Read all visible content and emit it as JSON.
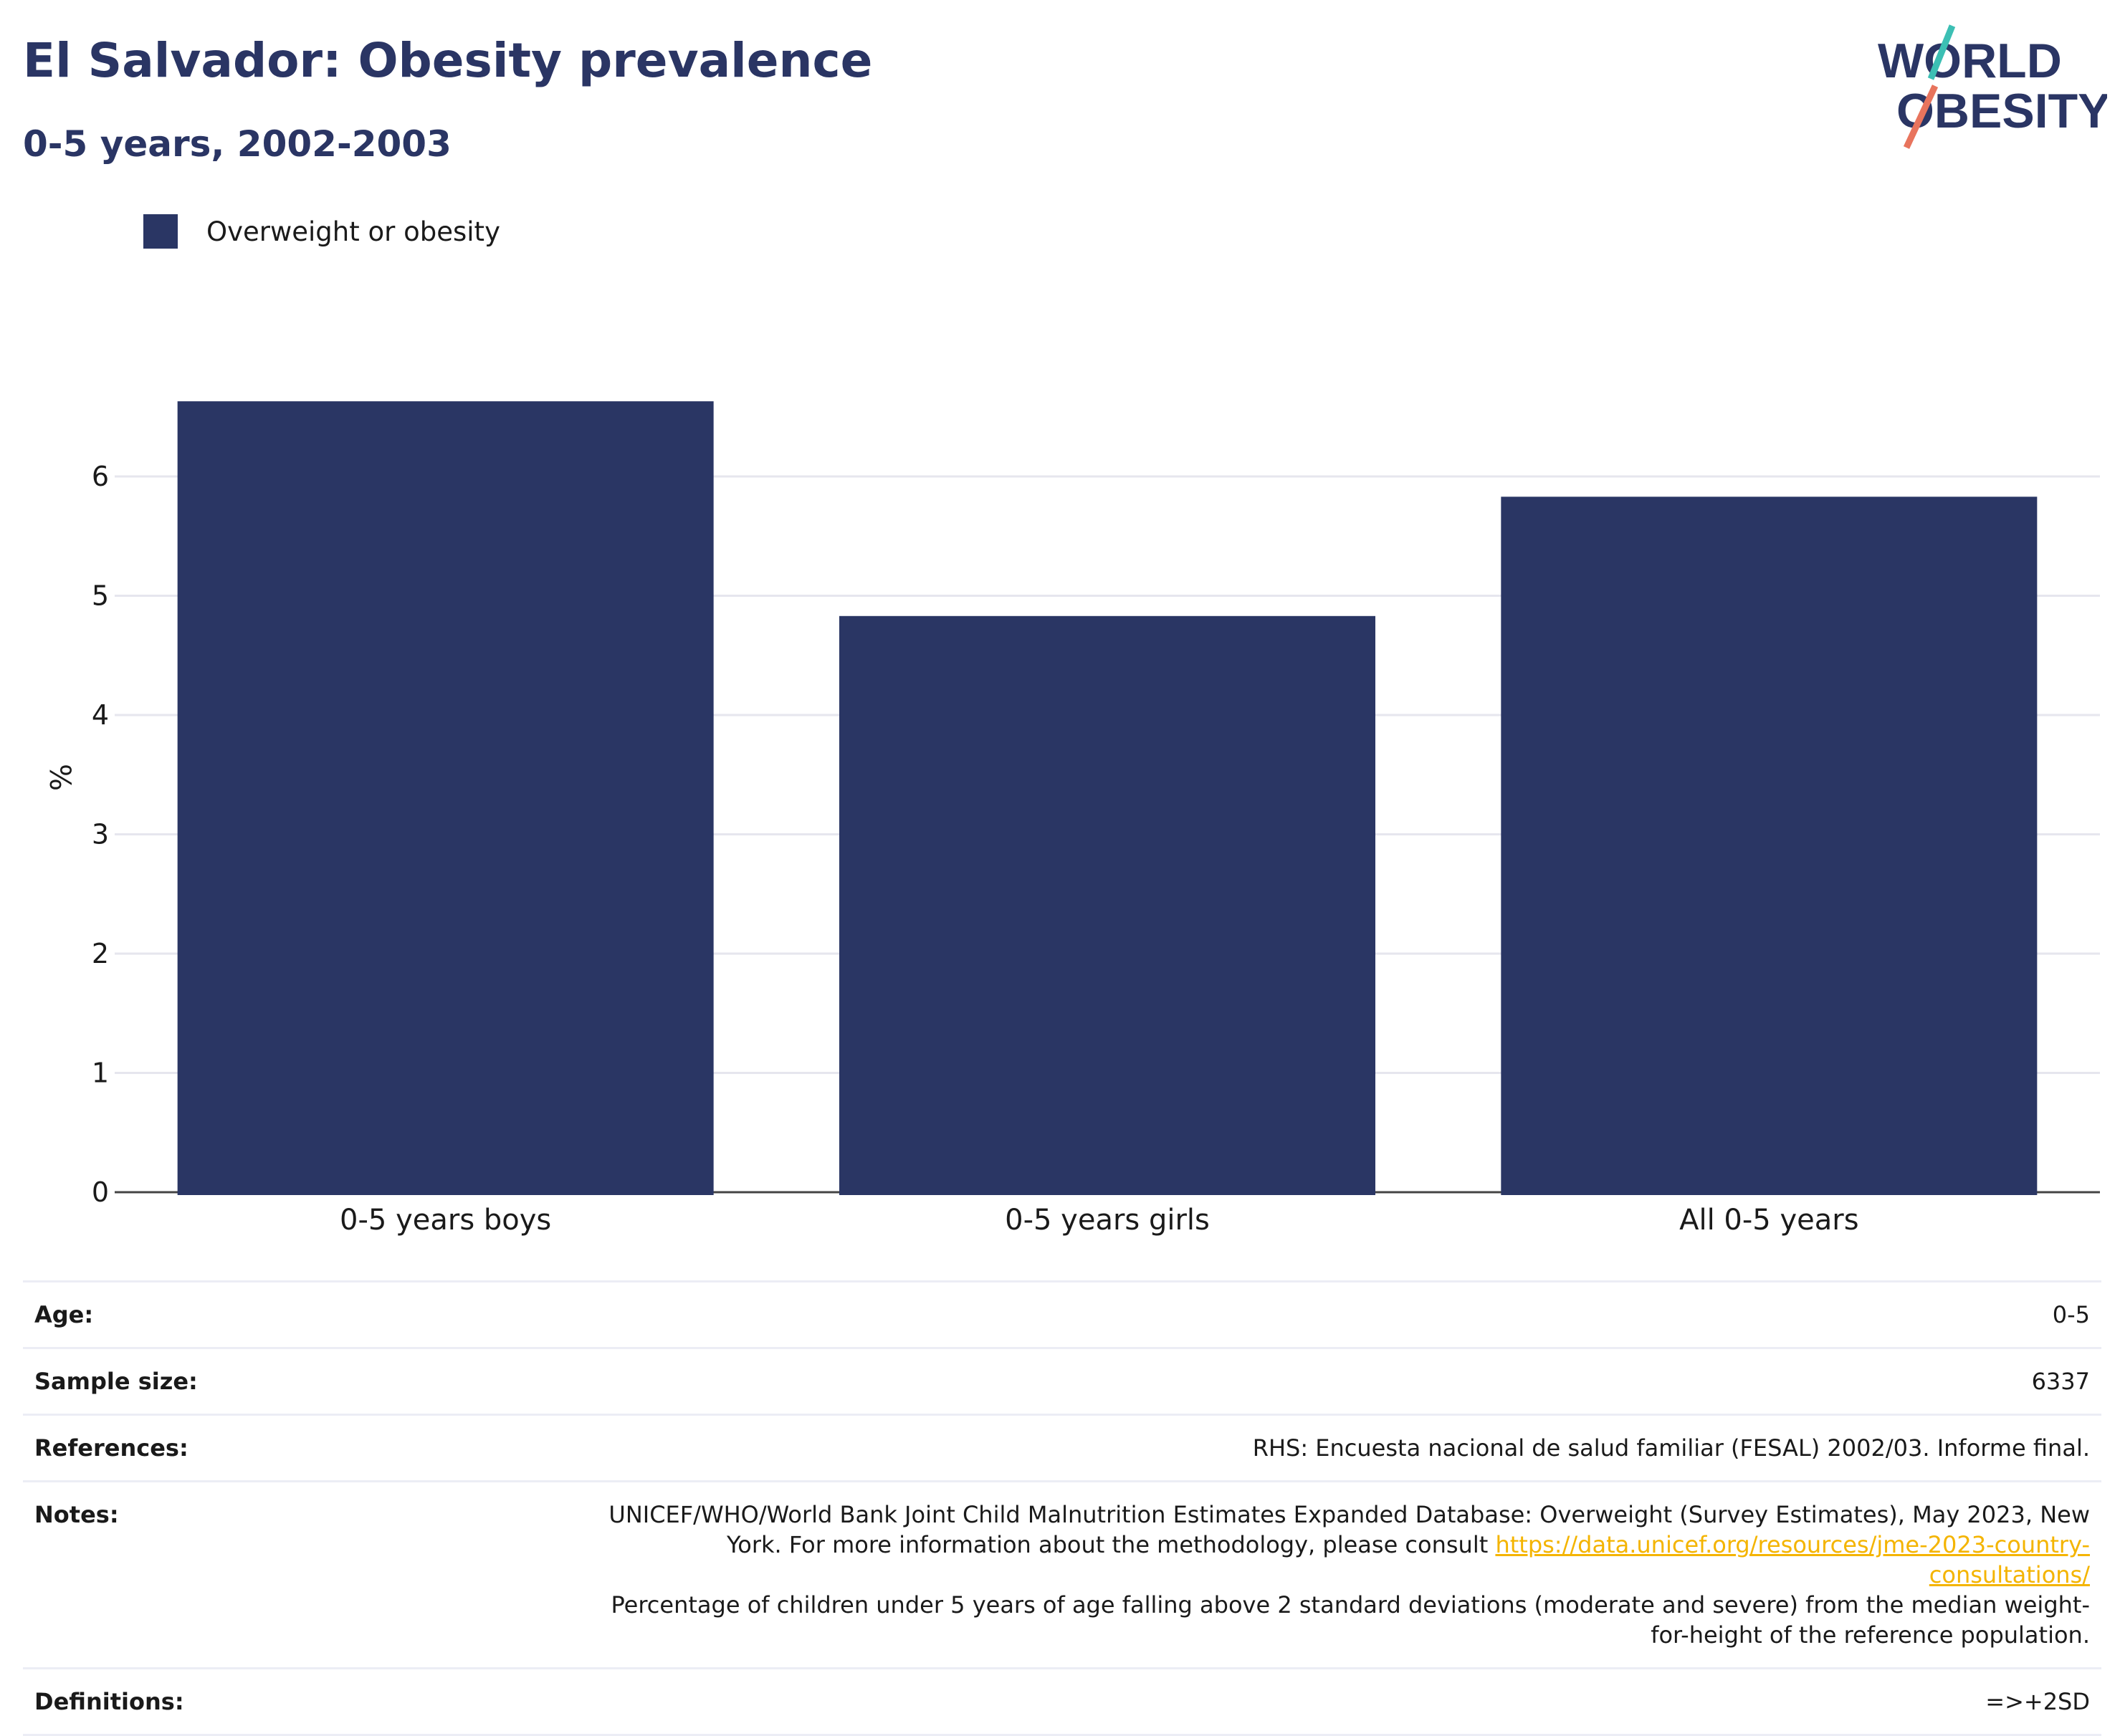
{
  "header": {
    "title": "El Salvador: Obesity prevalence",
    "subtitle": "0-5 years, 2002-2003",
    "logo_text_line1": "WORLD",
    "logo_text_line2": "OBESITY"
  },
  "colors": {
    "bar": "#2a3664",
    "title": "#2a3564",
    "logo_teal": "#3cbfb4",
    "logo_coral": "#e8745d",
    "gridline": "#e6e6ee",
    "link": "#f4b400"
  },
  "chart_data": {
    "type": "bar",
    "categories": [
      "0-5 years boys",
      "0-5 years girls",
      "All 0-5 years"
    ],
    "series": [
      {
        "name": "Overweight or obesity",
        "values": [
          6.63,
          4.83,
          5.83
        ]
      }
    ],
    "ylabel": "%",
    "xlabel": "",
    "ylim": [
      0,
      7
    ],
    "yticks": [
      0,
      1,
      2,
      3,
      4,
      5,
      6
    ],
    "grid": true,
    "legend": "top-left"
  },
  "meta": {
    "age_label": "Age:",
    "age_value": "0-5",
    "sample_label": "Sample size:",
    "sample_value": "6337",
    "references_label": "References:",
    "references_value": "RHS: Encuesta nacional de salud familiar (FESAL) 2002/03. Informe final.",
    "notes_label": "Notes:",
    "notes_text_1": "UNICEF/WHO/World Bank Joint Child Malnutrition Estimates Expanded Database: Overweight (Survey Estimates), May 2023, New York. For more information about the methodology, please consult ",
    "notes_link": "https://data.unicef.org/resources/jme-2023-country-consultations/",
    "notes_text_2": "Percentage of children under 5 years of age falling above 2 standard deviations (moderate and severe) from the median weight-for-height of the reference population.",
    "definitions_label": "Definitions:",
    "definitions_value": "=>+2SD"
  }
}
